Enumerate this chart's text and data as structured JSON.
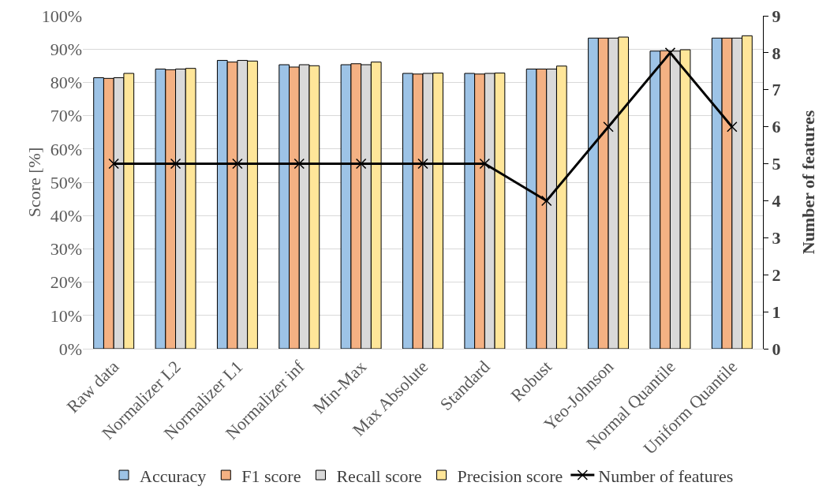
{
  "chart_data": {
    "type": "bar",
    "ylabel": "Score [%]",
    "y2label": "Number of features",
    "categories": [
      "Raw data",
      "Normalizer L2",
      "Normalizer L1",
      "Normalizer inf",
      "Min-Max",
      "Max Absolute",
      "Standard",
      "Robust",
      "Yeo-Johnson",
      "Normal Quantile",
      "Uniform Quantile"
    ],
    "series": [
      {
        "name": "Accuracy",
        "color": "#9dc3e6",
        "values": [
          81.4,
          84.0,
          86.6,
          85.3,
          85.3,
          82.7,
          82.7,
          84.0,
          93.3,
          89.4,
          93.3
        ]
      },
      {
        "name": "F1 score",
        "color": "#f4b183",
        "values": [
          81.2,
          83.8,
          86.1,
          84.6,
          85.6,
          82.5,
          82.5,
          84.0,
          93.3,
          89.5,
          93.3
        ]
      },
      {
        "name": "Recall score",
        "color": "#d9d9d9",
        "values": [
          81.4,
          84.0,
          86.6,
          85.3,
          85.3,
          82.7,
          82.7,
          84.0,
          93.3,
          89.4,
          93.3
        ]
      },
      {
        "name": "Precision score",
        "color": "#ffe699",
        "values": [
          82.7,
          84.2,
          86.4,
          85.0,
          86.1,
          82.8,
          82.8,
          84.9,
          93.6,
          89.8,
          94.0
        ]
      },
      {
        "name": "Number of features",
        "type": "line",
        "axis": "y2",
        "color": "#000000",
        "marker": "cross",
        "values": [
          5,
          5,
          5,
          5,
          5,
          5,
          5,
          4,
          6,
          8,
          6
        ]
      }
    ],
    "ylim": [
      0,
      100
    ],
    "yticks": [
      {
        "value": 0,
        "label": "0%"
      },
      {
        "value": 10,
        "label": "10%"
      },
      {
        "value": 20,
        "label": "20%"
      },
      {
        "value": 30,
        "label": "30%"
      },
      {
        "value": 40,
        "label": "40%"
      },
      {
        "value": 50,
        "label": "50%"
      },
      {
        "value": 60,
        "label": "60%"
      },
      {
        "value": 70,
        "label": "70%"
      },
      {
        "value": 80,
        "label": "80%"
      },
      {
        "value": 90,
        "label": "90%"
      },
      {
        "value": 100,
        "label": "100%"
      }
    ],
    "y2lim": [
      0,
      9
    ],
    "y2ticks": [
      0,
      1,
      2,
      3,
      4,
      5,
      6,
      7,
      8,
      9
    ],
    "grid": "y",
    "legend": "bottom"
  }
}
